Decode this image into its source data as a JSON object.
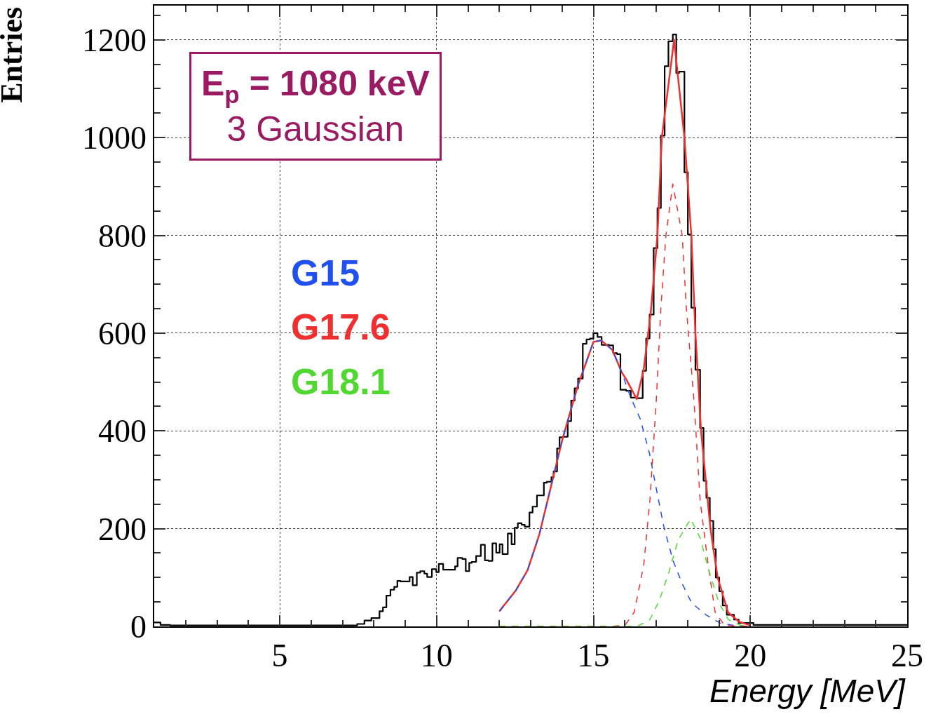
{
  "chart_data": {
    "type": "line",
    "xlabel": "Energy [MeV]",
    "ylabel": "Entries",
    "xlim": [
      1,
      25
    ],
    "ylim": [
      0,
      1270
    ],
    "xticks": [
      5,
      10,
      15,
      20,
      25
    ],
    "yticks": [
      0,
      200,
      400,
      600,
      800,
      1000,
      1200
    ],
    "grid": true,
    "marker": "none",
    "annotations": [
      "E$_{p}$ = 1080 keV\n3 Gaussian"
    ],
    "series": [
      {
        "type": "step",
        "color": "#000000",
        "line_style": "solid",
        "x": [
          1.0,
          1.2,
          1.5,
          6.8,
          7.47,
          7.7,
          7.92,
          8.18,
          8.29,
          8.4,
          8.53,
          8.65,
          8.75,
          8.85,
          9.14,
          9.24,
          9.37,
          9.48,
          9.61,
          9.7,
          9.85,
          9.99,
          10.07,
          10.21,
          10.59,
          10.67,
          10.82,
          10.93,
          11.04,
          11.12,
          11.26,
          11.41,
          11.54,
          11.65,
          11.78,
          11.9,
          12.01,
          12.1,
          12.27,
          12.39,
          12.49,
          12.59,
          12.71,
          12.81,
          12.96,
          13.06,
          13.2,
          13.42,
          13.51,
          13.66,
          13.73,
          13.84,
          13.92,
          14.03,
          14.18,
          14.29,
          14.4,
          14.51,
          14.66,
          14.78,
          14.89,
          15.0,
          15.13,
          15.26,
          15.49,
          15.63,
          15.75,
          15.86,
          16.04,
          16.19,
          16.38,
          16.57,
          16.68,
          16.79,
          16.92,
          17.04,
          17.15,
          17.27,
          17.39,
          17.53,
          17.64,
          17.73,
          17.9,
          18.01,
          18.12,
          18.25,
          18.4,
          18.51,
          18.6,
          18.71,
          18.82,
          18.9,
          19.01,
          19.12,
          19.25,
          19.48,
          19.63,
          19.81,
          20.1,
          25
        ],
        "values": [
          8,
          3,
          2,
          2,
          5,
          12,
          17,
          31,
          39,
          63,
          75,
          81,
          93,
          92,
          101,
          84,
          110,
          113,
          108,
          101,
          117,
          111,
          128,
          116,
          123,
          140,
          138,
          113,
          130,
          132,
          144,
          167,
          135,
          134,
          170,
          151,
          168,
          148,
          190,
          168,
          202,
          211,
          208,
          204,
          233,
          245,
          268,
          294,
          296,
          305,
          317,
          364,
          387,
          388,
          420,
          462,
          487,
          507,
          578,
          587,
          589,
          600,
          592,
          576,
          575,
          559,
          557,
          484,
          482,
          468,
          467,
          523,
          589,
          638,
          774,
          856,
          1004,
          1146,
          1197,
          1211,
          1132,
          1135,
          929,
          802,
          652,
          525,
          406,
          298,
          263,
          216,
          158,
          100,
          72,
          43,
          24,
          14,
          7,
          7,
          3,
          3
        ]
      },
      {
        "color": "#f03030",
        "line_style": "solid",
        "x": [
          12.0,
          12.53,
          12.9,
          13.27,
          13.57,
          14.0,
          14.5,
          15.0,
          15.25,
          15.6,
          15.9,
          16.04,
          16.38,
          16.6,
          16.82,
          17.04,
          17.18,
          17.57,
          17.9,
          18.12,
          18.25,
          18.43,
          18.73,
          18.96,
          19.29,
          19.63,
          20.0
        ],
        "values": [
          31,
          74,
          115,
          187,
          266,
          380,
          492,
          582,
          585,
          566,
          520,
          506,
          465,
          525,
          638,
          800,
          1000,
          1200,
          1000,
          800,
          601,
          400,
          200,
          100,
          29,
          10,
          2
        ]
      },
      {
        "name": "G15",
        "color": "#2050f0",
        "line_style": "dashed",
        "x": [
          12.01,
          12.53,
          12.9,
          13.27,
          13.57,
          14.0,
          14.5,
          15.0,
          15.25,
          15.6,
          15.9,
          16.19,
          16.49,
          16.79,
          16.99,
          17.24,
          17.54,
          17.84,
          18.13,
          18.58,
          19.03,
          19.48,
          20.0
        ],
        "values": [
          31,
          74,
          115,
          187,
          266,
          380,
          492,
          582,
          585,
          566,
          520,
          468,
          425,
          353,
          286,
          205,
          134,
          86,
          48,
          24,
          7,
          2,
          0
        ]
      },
      {
        "name": "G17.6",
        "color": "#f03030",
        "line_style": "dashed",
        "x": [
          12.0,
          15.5,
          16.0,
          16.3,
          16.6,
          16.8,
          17.0,
          17.15,
          17.31,
          17.53,
          17.83,
          17.96,
          18.21,
          18.4,
          18.66,
          18.88,
          19.18,
          20.0
        ],
        "values": [
          0,
          0,
          2,
          29,
          124,
          258,
          458,
          652,
          800,
          905,
          800,
          652,
          458,
          258,
          124,
          29,
          2,
          0
        ]
      },
      {
        "name": "G18.1",
        "color": "#50d830",
        "line_style": "dashed",
        "x": [
          12.0,
          16.4,
          16.8,
          17.1,
          17.4,
          17.7,
          18.1,
          18.4,
          18.7,
          19.0,
          19.3,
          19.7,
          20.0
        ],
        "values": [
          0,
          0,
          14,
          53,
          110,
          177,
          220,
          181,
          110,
          48,
          14,
          2,
          0
        ]
      }
    ]
  }
}
